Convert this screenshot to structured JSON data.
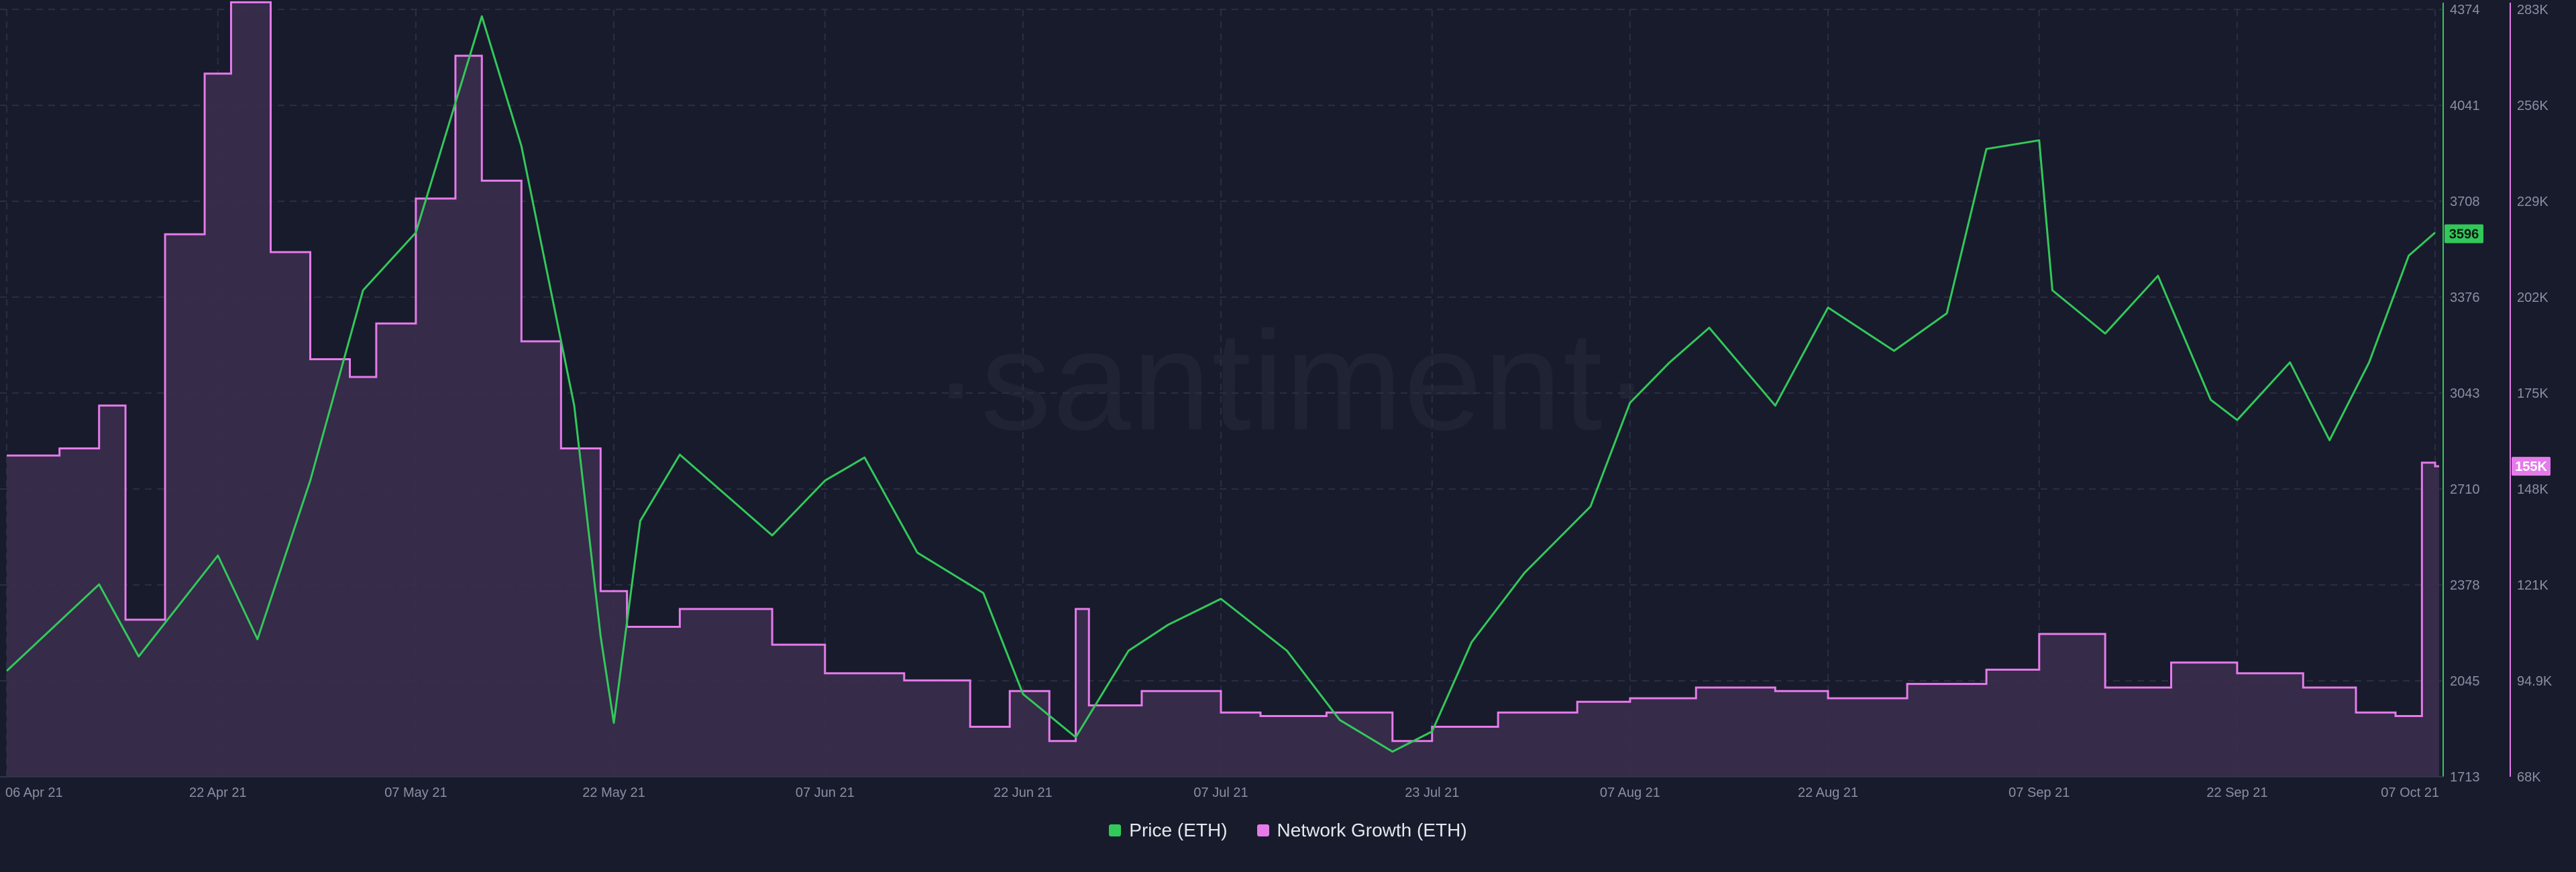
{
  "watermark": "·santiment·",
  "legend": [
    {
      "label": "Price (ETH)",
      "color": "#32c85a"
    },
    {
      "label": "Network Growth (ETH)",
      "color": "#e57aea"
    }
  ],
  "colors": {
    "background": "#181b2b",
    "grid": "#2a2e42",
    "price": "#32c85a",
    "network": "#e57aea",
    "network_fill": "#3a2d4d"
  },
  "chart_data": {
    "type": "line",
    "x_ticks": [
      "06 Apr 21",
      "22 Apr 21",
      "07 May 21",
      "22 May 21",
      "07 Jun 21",
      "22 Jun 21",
      "07 Jul 21",
      "23 Jul 21",
      "07 Aug 21",
      "22 Aug 21",
      "07 Sep 21",
      "22 Sep 21",
      "07 Oct 21"
    ],
    "price_axis": {
      "ticks": [
        "4374",
        "4041",
        "3708",
        "3376",
        "3043",
        "2710",
        "2378",
        "2045",
        "1713"
      ],
      "range": [
        1713,
        4374
      ],
      "current": "3596"
    },
    "network_axis": {
      "ticks": [
        "283K",
        "256K",
        "229K",
        "202K",
        "175K",
        "148K",
        "121K",
        "94.9K",
        "68K"
      ],
      "range": [
        68000,
        283000
      ],
      "current": "155K"
    },
    "series": [
      {
        "name": "Price (ETH)",
        "axis": "right-1",
        "x": [
          "06 Apr 21",
          "13 Apr 21",
          "16 Apr 21",
          "22 Apr 21",
          "25 Apr 21",
          "29 Apr 21",
          "03 May 21",
          "07 May 21",
          "10 May 21",
          "12 May 21",
          "15 May 21",
          "19 May 21",
          "21 May 21",
          "22 May 21",
          "24 May 21",
          "27 May 21",
          "03 Jun 21",
          "07 Jun 21",
          "10 Jun 21",
          "14 Jun 21",
          "19 Jun 21",
          "22 Jun 21",
          "26 Jun 21",
          "30 Jun 21",
          "03 Jul 21",
          "07 Jul 21",
          "12 Jul 21",
          "16 Jul 21",
          "20 Jul 21",
          "23 Jul 21",
          "26 Jul 21",
          "30 Jul 21",
          "04 Aug 21",
          "07 Aug 21",
          "10 Aug 21",
          "13 Aug 21",
          "18 Aug 21",
          "22 Aug 21",
          "27 Aug 21",
          "31 Aug 21",
          "03 Sep 21",
          "07 Sep 21",
          "08 Sep 21",
          "12 Sep 21",
          "16 Sep 21",
          "20 Sep 21",
          "22 Sep 21",
          "26 Sep 21",
          "29 Sep 21",
          "02 Oct 21",
          "05 Oct 21",
          "07 Oct 21"
        ],
        "values": [
          2080,
          2380,
          2130,
          2480,
          2190,
          2740,
          3400,
          3600,
          4050,
          4350,
          3900,
          3000,
          2200,
          1900,
          2600,
          2830,
          2550,
          2740,
          2820,
          2490,
          2350,
          2000,
          1850,
          2150,
          2240,
          2330,
          2150,
          1910,
          1800,
          1870,
          2180,
          2420,
          2650,
          3010,
          3150,
          3270,
          3000,
          3340,
          3190,
          3320,
          3890,
          3920,
          3400,
          3250,
          3450,
          3020,
          2950,
          3150,
          2880,
          3150,
          3520,
          3600
        ]
      },
      {
        "name": "Network Growth (ETH)",
        "axis": "right-2",
        "x": [
          "06 Apr 21",
          "10 Apr 21",
          "13 Apr 21",
          "15 Apr 21",
          "18 Apr 21",
          "21 Apr 21",
          "23 Apr 21",
          "26 Apr 21",
          "29 Apr 21",
          "02 May 21",
          "04 May 21",
          "07 May 21",
          "10 May 21",
          "12 May 21",
          "15 May 21",
          "18 May 21",
          "21 May 21",
          "23 May 21",
          "27 May 21",
          "03 Jun 21",
          "07 Jun 21",
          "13 Jun 21",
          "18 Jun 21",
          "21 Jun 21",
          "24 Jun 21",
          "26 Jun 21",
          "27 Jun 21",
          "01 Jul 21",
          "07 Jul 21",
          "10 Jul 21",
          "15 Jul 21",
          "20 Jul 21",
          "23 Jul 21",
          "28 Jul 21",
          "03 Aug 21",
          "07 Aug 21",
          "12 Aug 21",
          "18 Aug 21",
          "22 Aug 21",
          "28 Aug 21",
          "03 Sep 21",
          "07 Sep 21",
          "12 Sep 21",
          "17 Sep 21",
          "22 Sep 21",
          "27 Sep 21",
          "01 Oct 21",
          "04 Oct 21",
          "06 Oct 21",
          "07 Oct 21"
        ],
        "values": [
          158000,
          160000,
          172000,
          112000,
          220000,
          265000,
          285000,
          215000,
          185000,
          180000,
          195000,
          230000,
          270000,
          235000,
          190000,
          160000,
          120000,
          110000,
          115000,
          105000,
          97000,
          95000,
          82000,
          92000,
          78000,
          115000,
          88000,
          92000,
          86000,
          85000,
          86000,
          78000,
          82000,
          86000,
          89000,
          90000,
          93000,
          92000,
          90000,
          94000,
          98000,
          108000,
          93000,
          100000,
          97000,
          93000,
          86000,
          85000,
          156000,
          155000
        ]
      }
    ]
  }
}
